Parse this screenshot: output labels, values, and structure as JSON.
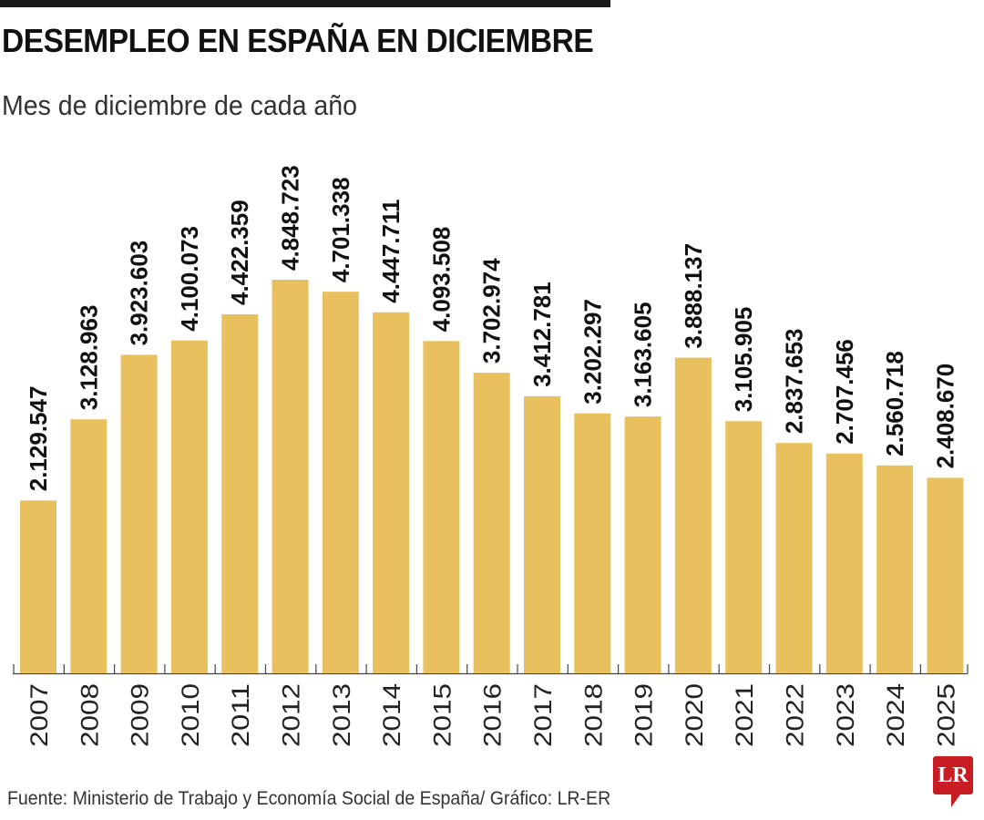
{
  "title": "DESEMPLEO EN ESPAÑA EN DICIEMBRE",
  "subtitle": "Mes de diciembre de cada año",
  "source": "Fuente: Ministerio de Trabajo y Economía Social de España/ Gráfico: LR-ER",
  "logo": "LR",
  "colors": {
    "bar": "#e8c15e",
    "text": "#111111",
    "logo": "#c81e23"
  },
  "chart_data": {
    "type": "bar",
    "title": "DESEMPLEO EN ESPAÑA EN DICIEMBRE",
    "subtitle": "Mes de diciembre de cada año",
    "xlabel": "",
    "ylabel": "",
    "ylim": [
      0,
      4848723
    ],
    "grid": false,
    "categories": [
      "2007",
      "2008",
      "2009",
      "2010",
      "2011",
      "2012",
      "2013",
      "2014",
      "2015",
      "2016",
      "2017",
      "2018",
      "2019",
      "2020",
      "2021",
      "2022",
      "2023",
      "2024",
      "2025"
    ],
    "values": [
      2129547,
      3128963,
      3923603,
      4100073,
      4422359,
      4848723,
      4701338,
      4447711,
      4093508,
      3702974,
      3412781,
      3202297,
      3163605,
      3888137,
      3105905,
      2837653,
      2707456,
      2560718,
      2408670
    ],
    "labels": [
      "2.129.547",
      "3.128.963",
      "3.923.603",
      "4.100.073",
      "4.422.359",
      "4.848.723",
      "4.701.338",
      "4.447.711",
      "4.093.508",
      "3.702.974",
      "3.412.781",
      "3.202.297",
      "3.163.605",
      "3.888.137",
      "3.105.905",
      "2.837.653",
      "2.707.456",
      "2.560.718",
      "2.408.670"
    ]
  }
}
